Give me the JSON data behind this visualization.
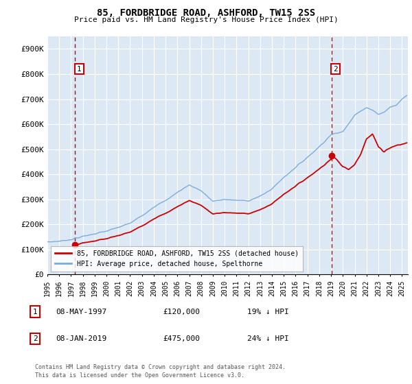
{
  "title": "85, FORDBRIDGE ROAD, ASHFORD, TW15 2SS",
  "subtitle": "Price paid vs. HM Land Registry's House Price Index (HPI)",
  "ylabel_ticks": [
    "£0",
    "£100K",
    "£200K",
    "£300K",
    "£400K",
    "£500K",
    "£600K",
    "£700K",
    "£800K",
    "£900K"
  ],
  "ytick_vals": [
    0,
    100000,
    200000,
    300000,
    400000,
    500000,
    600000,
    700000,
    800000,
    900000
  ],
  "xlim_min": 1995,
  "xlim_max": 2025.5,
  "ylim_min": 0,
  "ylim_max": 950000,
  "xticks": [
    1995,
    1996,
    1997,
    1998,
    1999,
    2000,
    2001,
    2002,
    2003,
    2004,
    2005,
    2006,
    2007,
    2008,
    2009,
    2010,
    2011,
    2012,
    2013,
    2014,
    2015,
    2016,
    2017,
    2018,
    2019,
    2020,
    2021,
    2022,
    2023,
    2024,
    2025
  ],
  "marker1_x": 1997.35,
  "marker1_y": 120000,
  "marker1_label": "1",
  "marker1_date": "08-MAY-1997",
  "marker1_price": "£120,000",
  "marker1_hpi": "19% ↓ HPI",
  "marker2_x": 2019.03,
  "marker2_y": 475000,
  "marker2_label": "2",
  "marker2_date": "08-JAN-2019",
  "marker2_price": "£475,000",
  "marker2_hpi": "24% ↓ HPI",
  "legend_line1": "85, FORDBRIDGE ROAD, ASHFORD, TW15 2SS (detached house)",
  "legend_line2": "HPI: Average price, detached house, Spelthorne",
  "footer_line1": "Contains HM Land Registry data © Crown copyright and database right 2024.",
  "footer_line2": "This data is licensed under the Open Government Licence v3.0.",
  "red_color": "#cc0000",
  "blue_color": "#7aacdc",
  "bg_color": "#dde8f5",
  "grid_color": "#ffffff",
  "marker_box_color": "#cc0000"
}
